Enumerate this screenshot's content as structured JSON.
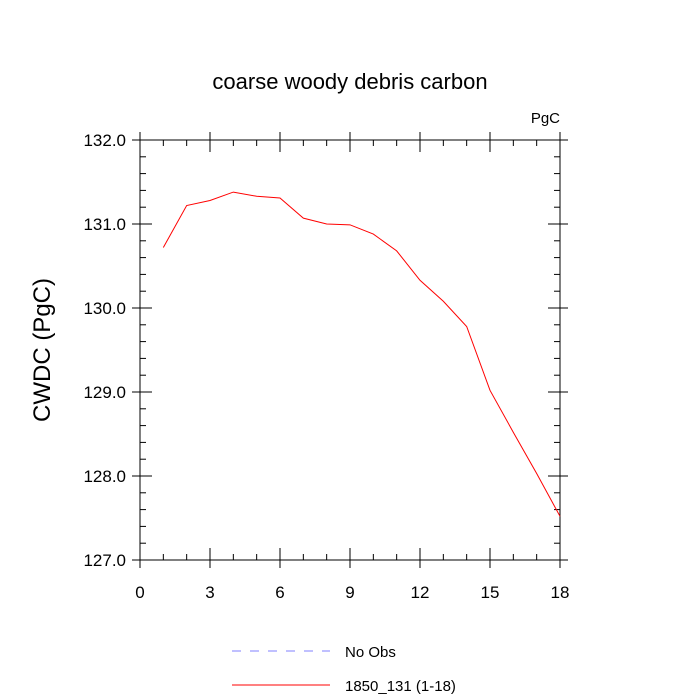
{
  "chart_data": {
    "type": "line",
    "title": "coarse woody debris carbon",
    "units": "PgC",
    "ylabel": "CWDC  (PgC)",
    "xlabel": "",
    "xlim": [
      0,
      18
    ],
    "ylim": [
      127.0,
      132.0
    ],
    "xticks": [
      "0",
      "3",
      "6",
      "9",
      "12",
      "15",
      "18"
    ],
    "yticks": [
      "127.0",
      "128.0",
      "129.0",
      "130.0",
      "131.0",
      "132.0"
    ],
    "series": [
      {
        "name": "1850_131 (1-18)",
        "color": "#ff0000",
        "x": [
          1,
          2,
          3,
          4,
          5,
          6,
          7,
          8,
          9,
          10,
          11,
          12,
          13,
          14,
          15,
          16,
          17,
          18
        ],
        "y": [
          130.72,
          131.22,
          131.28,
          131.38,
          131.33,
          131.31,
          131.07,
          131.0,
          130.99,
          130.88,
          130.68,
          130.33,
          130.08,
          129.78,
          129.02,
          128.52,
          128.03,
          127.52
        ]
      }
    ],
    "legend": [
      {
        "label": "No Obs",
        "color": "#8080ff",
        "style": "dashed"
      },
      {
        "label": "1850_131 (1-18)",
        "color": "#ff0000",
        "style": "solid"
      }
    ],
    "legend_position": "bottom",
    "grid": false
  }
}
